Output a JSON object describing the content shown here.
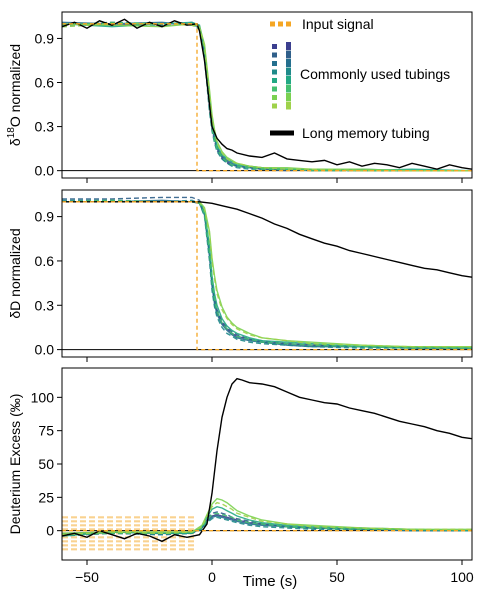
{
  "chart_data": {
    "type": "line",
    "xlabel": "Time (s)",
    "xlim": [
      -60,
      104
    ],
    "xticks": [
      -50,
      0,
      50,
      100
    ],
    "colors": {
      "input": "#f5a623",
      "long": "#000000",
      "tubings": [
        "#3b3f8f",
        "#2f5f8a",
        "#246f8e",
        "#1f8a8a",
        "#22a884",
        "#44bf70",
        "#7ad151",
        "#9fd24a"
      ]
    },
    "legend": {
      "input": "Input signal",
      "tubings": "Commonly used tubings",
      "long": "Long memory tubing"
    },
    "panels": [
      {
        "id": "d18o",
        "ylabel_prefix": "δ",
        "ylabel_sup": "18",
        "ylabel_rest": "O normalized",
        "ylim": [
          -0.05,
          1.08
        ],
        "yticks": [
          0.0,
          0.3,
          0.6,
          0.9
        ],
        "yticklabels": [
          "0.0",
          "0.3",
          "0.6",
          "0.9"
        ],
        "input_signal": {
          "t": [
            -60,
            -6,
            -6,
            104
          ],
          "v": [
            1.0,
            1.0,
            0.0,
            0.0
          ]
        },
        "long_memory": {
          "t": [
            -60,
            -55,
            -50,
            -45,
            -40,
            -35,
            -30,
            -25,
            -20,
            -15,
            -10,
            -6,
            -5,
            -3,
            -1,
            0,
            2,
            4,
            6,
            8,
            10,
            15,
            20,
            25,
            30,
            35,
            40,
            45,
            50,
            55,
            60,
            65,
            70,
            75,
            80,
            85,
            90,
            95,
            100,
            104
          ],
          "v": [
            0.98,
            1.01,
            0.97,
            1.02,
            0.99,
            1.03,
            0.97,
            1.01,
            0.98,
            1.02,
            0.99,
            1.0,
            0.95,
            0.75,
            0.45,
            0.3,
            0.22,
            0.18,
            0.15,
            0.14,
            0.12,
            0.1,
            0.09,
            0.12,
            0.08,
            0.07,
            0.06,
            0.07,
            0.04,
            0.06,
            0.03,
            0.05,
            0.04,
            0.02,
            0.05,
            0.03,
            0.01,
            0.04,
            0.02,
            0.01
          ]
        },
        "tubings_t": [
          -60,
          -40,
          -20,
          -8,
          -5,
          -3,
          -1,
          0,
          1,
          2,
          4,
          6,
          8,
          10,
          15,
          20,
          30,
          40,
          60,
          80,
          104
        ],
        "tubings": [
          [
            1.0,
            0.99,
            1.0,
            1.0,
            0.98,
            0.8,
            0.45,
            0.3,
            0.22,
            0.15,
            0.09,
            0.06,
            0.04,
            0.03,
            0.02,
            0.01,
            0.01,
            0.01,
            0.0,
            0.0,
            0.0
          ],
          [
            0.99,
            1.01,
            0.99,
            1.01,
            0.97,
            0.78,
            0.42,
            0.28,
            0.2,
            0.14,
            0.08,
            0.05,
            0.04,
            0.03,
            0.02,
            0.01,
            0.0,
            0.01,
            0.0,
            0.0,
            0.0
          ],
          [
            1.01,
            1.0,
            1.01,
            0.99,
            0.98,
            0.82,
            0.47,
            0.31,
            0.23,
            0.16,
            0.1,
            0.07,
            0.05,
            0.03,
            0.02,
            0.02,
            0.01,
            0.0,
            0.01,
            0.0,
            0.0
          ],
          [
            0.98,
            1.0,
            0.99,
            1.0,
            0.96,
            0.76,
            0.4,
            0.27,
            0.19,
            0.13,
            0.08,
            0.05,
            0.03,
            0.02,
            0.01,
            0.01,
            0.01,
            0.0,
            0.0,
            0.0,
            0.0
          ],
          [
            1.0,
            0.98,
            1.0,
            1.01,
            0.99,
            0.84,
            0.5,
            0.33,
            0.25,
            0.17,
            0.11,
            0.08,
            0.06,
            0.04,
            0.03,
            0.02,
            0.01,
            0.01,
            0.0,
            0.01,
            0.0
          ],
          [
            0.99,
            1.01,
            1.0,
            0.99,
            0.97,
            0.79,
            0.44,
            0.29,
            0.21,
            0.15,
            0.09,
            0.06,
            0.04,
            0.03,
            0.02,
            0.01,
            0.01,
            0.0,
            0.0,
            0.0,
            0.0
          ],
          [
            1.0,
            0.99,
            0.98,
            1.0,
            0.98,
            0.86,
            0.55,
            0.38,
            0.28,
            0.2,
            0.13,
            0.09,
            0.07,
            0.05,
            0.03,
            0.02,
            0.02,
            0.01,
            0.01,
            0.0,
            0.0
          ],
          [
            0.98,
            1.0,
            1.0,
            0.99,
            0.97,
            0.85,
            0.53,
            0.36,
            0.27,
            0.19,
            0.12,
            0.08,
            0.06,
            0.05,
            0.03,
            0.02,
            0.01,
            0.01,
            0.0,
            0.0,
            0.0
          ]
        ]
      },
      {
        "id": "dd",
        "ylabel_prefix": "δ",
        "ylabel_sup": "",
        "ylabel_rest": "D normalized",
        "ylim": [
          -0.05,
          1.08
        ],
        "yticks": [
          0.0,
          0.3,
          0.6,
          0.9
        ],
        "yticklabels": [
          "0.0",
          "0.3",
          "0.6",
          "0.9"
        ],
        "input_signal": {
          "t": [
            -60,
            -6,
            -6,
            104
          ],
          "v": [
            1.0,
            1.0,
            0.0,
            0.0
          ]
        },
        "long_memory": {
          "t": [
            -60,
            -40,
            -20,
            -10,
            -5,
            0,
            5,
            10,
            15,
            20,
            25,
            30,
            35,
            40,
            45,
            50,
            55,
            60,
            65,
            70,
            75,
            80,
            85,
            90,
            95,
            100,
            104
          ],
          "v": [
            1.0,
            1.0,
            1.0,
            1.0,
            1.0,
            0.99,
            0.97,
            0.95,
            0.92,
            0.89,
            0.85,
            0.82,
            0.78,
            0.75,
            0.72,
            0.7,
            0.67,
            0.65,
            0.63,
            0.61,
            0.59,
            0.57,
            0.55,
            0.54,
            0.52,
            0.5,
            0.49
          ]
        },
        "tubings_t": [
          -60,
          -40,
          -20,
          -8,
          -5,
          -3,
          -1,
          0,
          1,
          2,
          4,
          6,
          8,
          10,
          15,
          20,
          30,
          40,
          60,
          80,
          104
        ],
        "tubings": [
          [
            1.0,
            1.0,
            1.0,
            1.0,
            0.99,
            0.92,
            0.65,
            0.45,
            0.33,
            0.26,
            0.18,
            0.14,
            0.11,
            0.09,
            0.07,
            0.05,
            0.04,
            0.03,
            0.02,
            0.01,
            0.01
          ],
          [
            1.02,
            1.02,
            1.03,
            1.03,
            1.01,
            0.93,
            0.67,
            0.47,
            0.35,
            0.27,
            0.19,
            0.15,
            0.12,
            0.1,
            0.07,
            0.06,
            0.04,
            0.03,
            0.02,
            0.02,
            0.01
          ],
          [
            1.0,
            1.0,
            1.01,
            1.0,
            0.99,
            0.91,
            0.63,
            0.43,
            0.31,
            0.24,
            0.17,
            0.13,
            0.1,
            0.08,
            0.06,
            0.05,
            0.03,
            0.02,
            0.02,
            0.01,
            0.01
          ],
          [
            1.01,
            1.01,
            1.0,
            1.01,
            0.99,
            0.9,
            0.6,
            0.4,
            0.29,
            0.22,
            0.15,
            0.11,
            0.09,
            0.07,
            0.05,
            0.04,
            0.03,
            0.02,
            0.01,
            0.01,
            0.01
          ],
          [
            1.0,
            1.0,
            1.0,
            1.0,
            1.0,
            0.94,
            0.7,
            0.5,
            0.38,
            0.3,
            0.21,
            0.16,
            0.13,
            0.11,
            0.08,
            0.06,
            0.05,
            0.04,
            0.02,
            0.02,
            0.01
          ],
          [
            1.0,
            1.01,
            1.0,
            1.0,
            0.99,
            0.92,
            0.66,
            0.46,
            0.34,
            0.26,
            0.18,
            0.14,
            0.11,
            0.09,
            0.07,
            0.05,
            0.04,
            0.03,
            0.02,
            0.01,
            0.01
          ],
          [
            1.0,
            1.0,
            1.0,
            1.0,
            1.0,
            0.96,
            0.8,
            0.62,
            0.5,
            0.4,
            0.29,
            0.22,
            0.18,
            0.15,
            0.11,
            0.08,
            0.06,
            0.05,
            0.03,
            0.02,
            0.02
          ],
          [
            1.0,
            1.0,
            1.0,
            1.0,
            1.0,
            0.95,
            0.78,
            0.6,
            0.48,
            0.38,
            0.27,
            0.21,
            0.17,
            0.14,
            0.1,
            0.08,
            0.06,
            0.04,
            0.03,
            0.02,
            0.02
          ]
        ]
      },
      {
        "id": "dexcess",
        "ylabel_prefix": "",
        "ylabel_sup": "",
        "ylabel_rest": "Deuterium Excess (‰)",
        "ylim": [
          -22,
          122
        ],
        "yticks": [
          0,
          25,
          50,
          75,
          100
        ],
        "yticklabels": [
          "0",
          "25",
          "50",
          "75",
          "100"
        ],
        "input_signal": {
          "t": [
            -60,
            -6,
            -6,
            104
          ],
          "v": [
            0,
            0,
            0,
            0
          ]
        },
        "input_noise_band": {
          "t": [
            -60,
            -6
          ],
          "lo": -14,
          "hi": 10
        },
        "long_memory": {
          "t": [
            -60,
            -55,
            -50,
            -45,
            -40,
            -35,
            -30,
            -25,
            -20,
            -15,
            -10,
            -5,
            -2,
            0,
            2,
            4,
            6,
            8,
            10,
            12,
            15,
            20,
            25,
            30,
            35,
            40,
            45,
            50,
            55,
            60,
            65,
            70,
            75,
            80,
            85,
            90,
            95,
            100,
            104
          ],
          "v": [
            -4,
            -2,
            -5,
            0,
            -3,
            -6,
            -2,
            -4,
            -8,
            -3,
            -5,
            -3,
            5,
            28,
            60,
            85,
            100,
            110,
            114,
            113,
            111,
            110,
            108,
            104,
            100,
            98,
            96,
            95,
            92,
            90,
            88,
            85,
            82,
            80,
            78,
            75,
            73,
            70,
            69
          ]
        },
        "tubings_t": [
          -60,
          -40,
          -20,
          -8,
          -4,
          -2,
          0,
          2,
          4,
          6,
          8,
          10,
          15,
          20,
          30,
          40,
          60,
          80,
          104
        ],
        "tubings": [
          [
            -3,
            -1,
            -2,
            -2,
            2,
            8,
            11,
            12,
            11,
            10,
            9,
            8,
            6,
            5,
            3,
            2,
            1,
            0,
            0
          ],
          [
            -4,
            -2,
            -3,
            -2,
            3,
            9,
            13,
            14,
            13,
            12,
            10,
            9,
            7,
            5,
            3,
            2,
            1,
            1,
            0
          ],
          [
            -2,
            -1,
            -2,
            -1,
            2,
            7,
            10,
            11,
            10,
            9,
            8,
            7,
            5,
            4,
            3,
            2,
            1,
            0,
            0
          ],
          [
            -3,
            -2,
            -3,
            -2,
            1,
            6,
            9,
            10,
            9,
            8,
            7,
            6,
            4,
            3,
            2,
            1,
            1,
            0,
            0
          ],
          [
            -4,
            -1,
            -2,
            -2,
            3,
            10,
            16,
            18,
            17,
            15,
            13,
            11,
            8,
            6,
            4,
            3,
            2,
            1,
            0
          ],
          [
            -3,
            -2,
            -2,
            -1,
            2,
            8,
            12,
            13,
            12,
            11,
            10,
            8,
            6,
            5,
            3,
            2,
            1,
            1,
            0
          ],
          [
            -2,
            -1,
            -1,
            -1,
            4,
            12,
            20,
            24,
            23,
            21,
            18,
            15,
            11,
            8,
            5,
            4,
            2,
            1,
            1
          ],
          [
            -3,
            -1,
            -2,
            -1,
            3,
            11,
            18,
            21,
            20,
            18,
            16,
            13,
            10,
            7,
            5,
            3,
            2,
            1,
            1
          ]
        ]
      }
    ]
  }
}
